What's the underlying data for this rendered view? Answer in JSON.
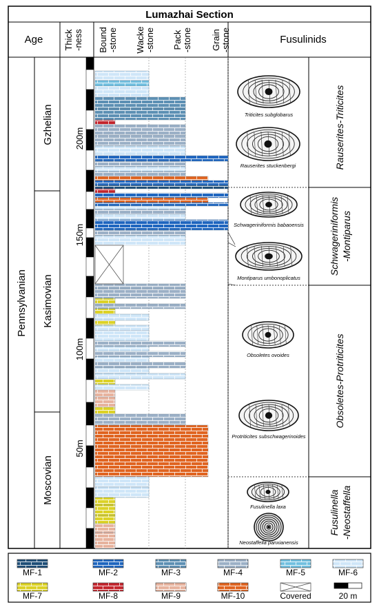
{
  "title": "Lumazhai Section",
  "headers": {
    "age": "Age",
    "thickness": [
      "Thick",
      "-ness"
    ],
    "lithology": [
      [
        "Bound",
        "-stone"
      ],
      [
        "Wacke",
        "-stone"
      ],
      [
        "Pack",
        "-stone"
      ],
      [
        "Grain",
        "-stone"
      ]
    ],
    "fusulinids": "Fusulinids"
  },
  "period": "Pennsylvanian",
  "stages": [
    "Gzhelian",
    "Kasimovian",
    "Moscovian"
  ],
  "depth_ticks": [
    "200m",
    "150m",
    "100m",
    "50m"
  ],
  "species": [
    "Triticites subglobarus",
    "Rauserites stuckenbergi",
    "Schwageriniformis babaoensis",
    "Montiparus umbonoplicatus",
    "Obsoletes ovoides",
    "Protriticites subschwagerinoides",
    "Fusulinella laxa",
    "Neostaffella panxianensis"
  ],
  "zones": [
    [
      "Rauserites-Triticites"
    ],
    [
      "Schwageriniformis",
      "-Montiparus"
    ],
    [
      "Obsoletes-Protriticites"
    ],
    [
      "Fusulinella",
      "-Neostaffella"
    ]
  ],
  "legend": {
    "items": [
      {
        "label": "MF-1",
        "color": "#1f4f78"
      },
      {
        "label": "MF-2",
        "color": "#1f66bf"
      },
      {
        "label": "MF-3",
        "color": "#5d90b4"
      },
      {
        "label": "MF-4",
        "color": "#9bb0c6"
      },
      {
        "label": "MF-5",
        "color": "#72c0e0"
      },
      {
        "label": "MF-6",
        "color": "#cfe6f8"
      },
      {
        "label": "MF-7",
        "color": "#dcd226"
      },
      {
        "label": "MF-8",
        "color": "#c4262e"
      },
      {
        "label": "MF-9",
        "color": "#e7b39e"
      },
      {
        "label": "MF-10",
        "color": "#e06420"
      },
      {
        "label": "Covered",
        "color": "#ffffff"
      }
    ],
    "scale_label": "20 m"
  }
}
